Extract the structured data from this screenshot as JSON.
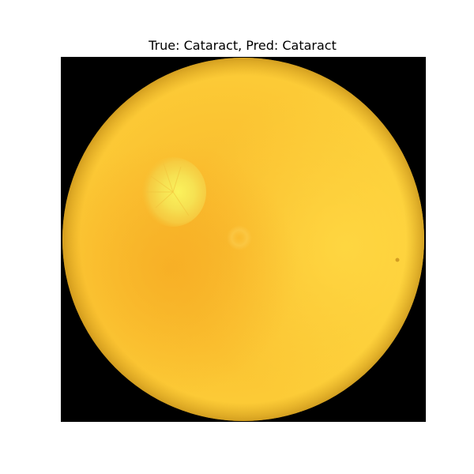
{
  "figure": {
    "title": "True: Cataract, Pred: Cataract"
  },
  "image": {
    "subject": "retinal-fundus-photograph",
    "colors": {
      "background": "#000000",
      "fundus_base": "#fbc634",
      "fundus_warm": "#f8b426",
      "fundus_light": "#ffd640",
      "optic_disc": "#f6ea57"
    }
  }
}
